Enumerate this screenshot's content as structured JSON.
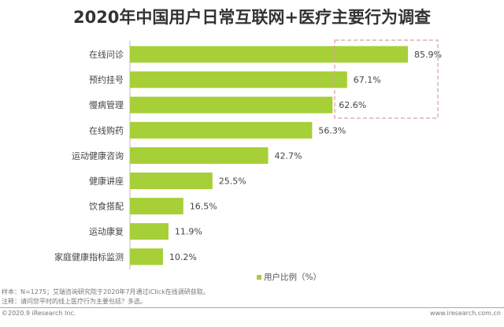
{
  "chart_data": {
    "type": "bar",
    "orientation": "horizontal",
    "title": "2020年中国用户日常互联网+医疗主要行为调查",
    "categories": [
      "在线问诊",
      "预约挂号",
      "慢病管理",
      "在线购药",
      "运动健康咨询",
      "健康讲座",
      "饮食搭配",
      "运动康复",
      "家庭健康指标监测"
    ],
    "series": [
      {
        "name": "用户比例（%）",
        "values": [
          85.9,
          67.1,
          62.6,
          56.3,
          42.7,
          25.5,
          16.5,
          11.9,
          10.2
        ]
      }
    ],
    "data_labels": [
      "85.9%",
      "67.1%",
      "62.6%",
      "56.3%",
      "42.7%",
      "25.5%",
      "16.5%",
      "11.9%",
      "10.2%"
    ],
    "xlim": [
      0,
      100
    ],
    "grid": false,
    "legend_position": "bottom",
    "bar_color": "#a6cf38",
    "highlight_box_color": "#d9a0a0",
    "highlighted_categories": [
      "在线问诊",
      "预约挂号",
      "慢病管理"
    ]
  },
  "footer": {
    "sample": "样本：N=1275；艾瑞咨询研究院于2020年7月通过iClick在线调研获取。",
    "note": "注释：请问您平时的线上医疗行为主要包括？多选。",
    "copyright": "©2020.9 iResearch Inc.",
    "website": "www.iresearch.com.cn"
  }
}
